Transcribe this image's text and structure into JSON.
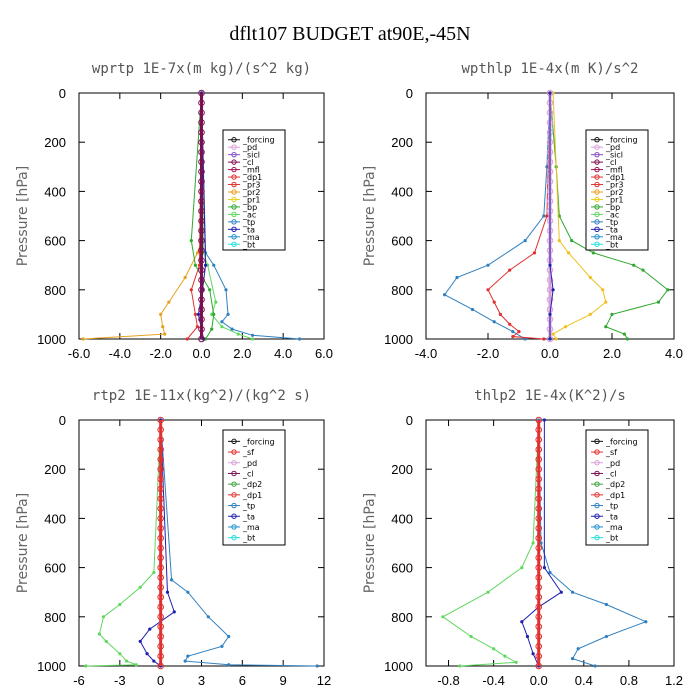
{
  "figure_title": "dflt107  BUDGET at90E,-45N",
  "colors": {
    "_forcing": "#111111",
    "_pd": "#d8a0d8",
    "_sicl": "#8050c8",
    "_cl": "#7a1050",
    "_mfl": "#a01050",
    "_dp1": "#e03030",
    "_pr3": "#e03030",
    "_pr2": "#e8a020",
    "_pr1": "#e8d020",
    "_bp": "#30a830",
    "_ac": "#60d860",
    "_tp": "#3080c0",
    "_ta": "#2020b0",
    "_ma": "#2090d0",
    "_bt": "#20e0e0",
    "_sf": "#e03030",
    "_dp2": "#40a040",
    "red_forcing": "#e03030",
    "yellow": "#f0c020"
  },
  "chart_data": [
    {
      "type": "line",
      "title": "wprtp  1E-7x(m kg)/(s^2 kg)",
      "ylabel": "Pressure [hPa]",
      "xlim": [
        -6,
        6
      ],
      "ylim": [
        1000,
        0
      ],
      "y_reversed": true,
      "xticks": [
        "-6.0",
        "-4.0",
        "-2.0",
        "0.0",
        "2.0",
        "4.0",
        "6.0"
      ],
      "yticks": [
        "0",
        "200",
        "400",
        "600",
        "800",
        "1000"
      ],
      "legend": [
        "_forcing",
        "_pd",
        "_sicl",
        "_cl",
        "_mfl",
        "_dp1",
        "_pr3",
        "_pr2",
        "_pr1",
        "_bp",
        "_ac",
        "_tp",
        "_ta",
        "_ma",
        "_bt"
      ],
      "legend_position": "top-right",
      "series": [
        {
          "name": "_pr2",
          "x": [
            0,
            0,
            -0.2,
            -0.8,
            -1.6,
            -2.0,
            -1.9,
            -1.8,
            -5.8
          ],
          "y": [
            0,
            600,
            650,
            750,
            850,
            900,
            950,
            980,
            1000
          ]
        },
        {
          "name": "_tp",
          "x": [
            0,
            0.2,
            0.6,
            1.2,
            1.3,
            1.0,
            1.5,
            2.5,
            4.8
          ],
          "y": [
            0,
            650,
            700,
            800,
            900,
            930,
            960,
            985,
            1000
          ]
        },
        {
          "name": "_ac",
          "x": [
            0,
            0.1,
            0.3,
            0.7,
            0.5,
            1.0,
            1.8,
            2.5
          ],
          "y": [
            0,
            650,
            700,
            850,
            900,
            950,
            980,
            1000
          ]
        },
        {
          "name": "_dp1",
          "x": [
            0,
            -0.1,
            -0.5,
            -0.3,
            -0.2,
            -0.7
          ],
          "y": [
            0,
            700,
            800,
            900,
            950,
            1000
          ]
        },
        {
          "name": "_bp",
          "x": [
            0,
            -0.5,
            -0.3,
            0.4,
            0.6,
            0.5,
            0.2
          ],
          "y": [
            0,
            600,
            700,
            800,
            900,
            960,
            1000
          ]
        },
        {
          "name": "_ta",
          "x": [
            0,
            0.2,
            0.05,
            -0.15,
            0.1
          ],
          "y": [
            0,
            700,
            800,
            900,
            1000
          ]
        },
        {
          "name": "_forcing",
          "x": [
            0,
            0
          ],
          "y": [
            0,
            1000
          ],
          "marker_every": 25
        }
      ]
    },
    {
      "type": "line",
      "title": "wpthlp  1E-4x(m K)/s^2",
      "ylabel": "Pressure [hPa]",
      "xlim": [
        -4,
        4
      ],
      "ylim": [
        1000,
        0
      ],
      "y_reversed": true,
      "xticks": [
        "-4.0",
        "-2.0",
        "0.0",
        "2.0",
        "4.0"
      ],
      "yticks": [
        "0",
        "200",
        "400",
        "600",
        "800",
        "1000"
      ],
      "legend": [
        "_forcing",
        "_pd",
        "_sicl",
        "_cl",
        "_mfl",
        "_dp1",
        "_pr3",
        "_pr2",
        "_pr1",
        "_bp",
        "_ac",
        "_tp",
        "_ta",
        "_ma",
        "_bt"
      ],
      "legend_position": "top-right",
      "series": [
        {
          "name": "_ac",
          "x": [
            0,
            0.2,
            0.3,
            0.7,
            1.4,
            2.7,
            3.0,
            3.8,
            3.5,
            2.0,
            1.8,
            2.4,
            2.5
          ],
          "y": [
            0,
            300,
            500,
            600,
            650,
            700,
            720,
            800,
            850,
            900,
            950,
            980,
            1000
          ]
        },
        {
          "name": "_tp",
          "x": [
            0,
            -0.1,
            -0.2,
            -0.8,
            -2.0,
            -3.0,
            -3.4,
            -2.5,
            -1.8,
            -1.2,
            -0.8
          ],
          "y": [
            0,
            300,
            500,
            600,
            700,
            750,
            820,
            880,
            930,
            970,
            1000
          ]
        },
        {
          "name": "_dp1",
          "x": [
            0,
            -0.1,
            -0.5,
            -1.3,
            -2.0,
            -1.8,
            -1.6,
            -1.3,
            -1.0,
            -1.2,
            -0.2
          ],
          "y": [
            0,
            500,
            650,
            720,
            800,
            850,
            900,
            940,
            970,
            990,
            1000
          ]
        },
        {
          "name": "_pr2",
          "x": [
            0.1,
            0.3,
            0.6,
            1.3,
            1.7,
            1.8,
            1.3,
            0.5,
            0.1,
            0.2
          ],
          "y": [
            0,
            600,
            650,
            750,
            800,
            850,
            900,
            950,
            980,
            1000
          ]
        },
        {
          "name": "_pd",
          "x": [
            0,
            0
          ],
          "y": [
            0,
            1000
          ],
          "marker_every": 25
        },
        {
          "name": "_ta",
          "x": [
            0,
            0,
            0.1,
            0,
            0
          ],
          "y": [
            0,
            700,
            800,
            900,
            1000
          ]
        }
      ]
    },
    {
      "type": "line",
      "title": "rtp2  1E-11x(kg^2)/(kg^2 s)",
      "ylabel": "Pressure [hPa]",
      "xlim": [
        -6,
        12
      ],
      "ylim": [
        1000,
        0
      ],
      "y_reversed": true,
      "xticks": [
        "-6",
        "-3",
        "0",
        "3",
        "6",
        "9",
        "12"
      ],
      "yticks": [
        "0",
        "200",
        "400",
        "600",
        "800",
        "1000"
      ],
      "legend": [
        "_forcing",
        "_sf",
        "_pd",
        "_cl",
        "_dp2",
        "_dp1",
        "_tp",
        "_ta",
        "_ma",
        "_bt"
      ],
      "legend_position": "top-right",
      "series": [
        {
          "name": "_dp2",
          "x": [
            0,
            -0.5,
            -1.5,
            -3.0,
            -4.2,
            -4.5,
            -4.0,
            -3.0,
            -2.5,
            -1.8,
            -5.5
          ],
          "y": [
            0,
            620,
            680,
            750,
            800,
            870,
            900,
            950,
            980,
            995,
            1000
          ]
        },
        {
          "name": "_tp",
          "x": [
            0,
            0.8,
            2.0,
            3.5,
            5.0,
            4.5,
            2.0,
            1.8,
            5.0,
            11.5
          ],
          "y": [
            0,
            650,
            700,
            800,
            880,
            920,
            960,
            980,
            995,
            1000
          ]
        },
        {
          "name": "_ta",
          "x": [
            0,
            0.5,
            1.0,
            -0.8,
            -1.5,
            -1.0,
            -0.5,
            0
          ],
          "y": [
            0,
            700,
            780,
            850,
            900,
            950,
            980,
            1000
          ]
        },
        {
          "name": "_forcing",
          "x": [
            0,
            0
          ],
          "y": [
            0,
            1000
          ],
          "marker_every": 25
        }
      ]
    },
    {
      "type": "line",
      "title": "thlp2  1E-4x(K^2)/s",
      "ylabel": "Pressure [hPa]",
      "xlim": [
        -1.0,
        1.2
      ],
      "ylim": [
        1000,
        0
      ],
      "y_reversed": true,
      "xticks": [
        "-0.8",
        "-0.4",
        "0.0",
        "0.4",
        "0.8",
        "1.2"
      ],
      "yticks": [
        "0",
        "200",
        "400",
        "600",
        "800",
        "1000"
      ],
      "legend": [
        "_forcing",
        "_sf",
        "_pd",
        "_cl",
        "_dp2",
        "_dp1",
        "_tp",
        "_ta",
        "_ma",
        "_bt"
      ],
      "legend_position": "top-right",
      "series": [
        {
          "name": "_dp2",
          "x": [
            0,
            -0.05,
            -0.15,
            -0.45,
            -0.85,
            -0.6,
            -0.4,
            -0.3,
            -0.2,
            -0.7
          ],
          "y": [
            0,
            500,
            600,
            700,
            800,
            880,
            930,
            960,
            985,
            1000
          ]
        },
        {
          "name": "_tp",
          "x": [
            0,
            0.02,
            0.1,
            0.3,
            0.6,
            0.95,
            0.6,
            0.35,
            0.3,
            0.5
          ],
          "y": [
            0,
            500,
            620,
            700,
            750,
            820,
            880,
            930,
            970,
            1000
          ]
        },
        {
          "name": "_ta",
          "x": [
            0.05,
            0.05,
            0.2,
            0.0,
            -0.15,
            -0.1,
            -0.05,
            0
          ],
          "y": [
            0,
            600,
            700,
            760,
            820,
            880,
            950,
            1000
          ]
        },
        {
          "name": "_forcing",
          "x": [
            0,
            0
          ],
          "y": [
            0,
            1000
          ],
          "marker_every": 25
        }
      ]
    }
  ]
}
